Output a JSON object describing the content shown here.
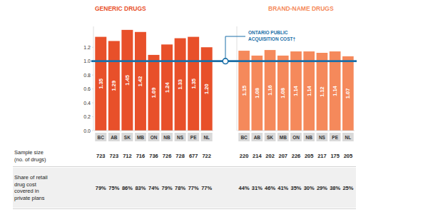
{
  "chart_data": [
    {
      "type": "bar",
      "title": "GENERIC DRUGS",
      "categories": [
        "BC",
        "AB",
        "SK",
        "MB",
        "ON",
        "NB",
        "NS",
        "PE",
        "NL"
      ],
      "values": [
        1.35,
        1.29,
        1.45,
        1.42,
        1.09,
        1.24,
        1.33,
        1.35,
        1.2
      ],
      "value_labels": [
        "1.35",
        "1.29",
        "1.45",
        "1.42",
        "1.09",
        "1.24",
        "1.33",
        "1.35",
        "1.20"
      ],
      "color": "#e8502a",
      "ylim": [
        0,
        1.5
      ],
      "yticks": [
        {
          "value": 0,
          "label": "0.0"
        },
        0.2,
        0.4,
        0.6,
        0.8,
        {
          "value": 1,
          "label": "1.0"
        },
        1.2
      ],
      "grid": false,
      "data_labels": true,
      "annotations": [
        {
          "text": [
            "ONTARIO PUBLIC",
            "ACQUISITION COST†"
          ],
          "y": 1
        }
      ]
    },
    {
      "type": "bar",
      "title": "BRAND-NAME DRUGS",
      "categories": [
        "BC",
        "AB",
        "SK",
        "MB",
        "ON",
        "NB",
        "NS",
        "PE",
        "NL"
      ],
      "values": [
        1.15,
        1.08,
        1.16,
        1.08,
        1.14,
        1.14,
        1.12,
        1.14,
        1.07
      ],
      "color": "#f5895b",
      "ylim": [
        0,
        1.5
      ],
      "grid": false,
      "data_labels": true,
      "tick_labels": "x"
    }
  ],
  "table": {
    "rows": [
      {
        "label": [
          "Sample size",
          "(no. of drugs)"
        ],
        "cells": [
          [
            723,
            723,
            712,
            716,
            736,
            726,
            728,
            677,
            722
          ],
          [
            220,
            214,
            202,
            207,
            226,
            205,
            217,
            175,
            205
          ]
        ]
      },
      {
        "label": [
          "Share of retail",
          "drug cost",
          "covered in",
          "private plans"
        ],
        "cells": [
          [
            "79%",
            "75%",
            "86%",
            "83%",
            "74%",
            "79%",
            "78%",
            "77%",
            "77%"
          ],
          [
            "44%",
            "31%",
            "46%",
            "41%",
            "35%",
            "30%",
            "29%",
            "38%",
            "25%"
          ]
        ]
      }
    ]
  }
}
